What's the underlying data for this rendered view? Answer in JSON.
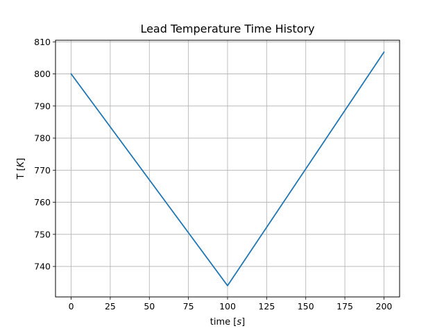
{
  "chart_data": {
    "type": "line",
    "title": "Lead Temperature Time History",
    "xlabel": "time [s]",
    "ylabel": "T [K]",
    "xlim": [
      -10,
      210
    ],
    "ylim": [
      730.5,
      810.5
    ],
    "xticks": [
      0,
      25,
      50,
      75,
      100,
      125,
      150,
      175,
      200
    ],
    "yticks": [
      740,
      750,
      760,
      770,
      780,
      790,
      800,
      810
    ],
    "grid": true,
    "series": [
      {
        "color": "#1f77b4",
        "x": [
          0,
          100,
          200
        ],
        "y": [
          800,
          734,
          806.8
        ]
      }
    ]
  }
}
